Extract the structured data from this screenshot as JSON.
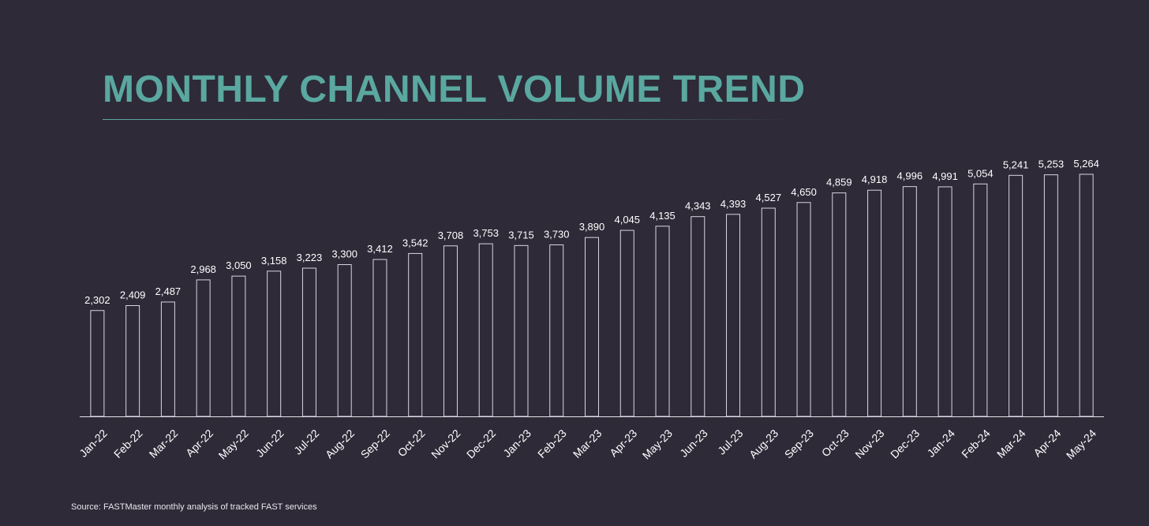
{
  "title": "MONTHLY CHANNEL VOLUME TREND",
  "source": "Source: FASTMaster monthly analysis of tracked FAST services",
  "colors": {
    "background": "#2e2a38",
    "title": "#5aa8a0",
    "bar_stroke": "#d9d6e2",
    "axis": "#e6e4ec",
    "text": "#ffffff"
  },
  "chart_data": {
    "type": "bar",
    "title": "MONTHLY CHANNEL VOLUME TREND",
    "xlabel": "",
    "ylabel": "",
    "ylim": [
      0,
      5500
    ],
    "grid": false,
    "legend": "none",
    "categories": [
      "Jan-22",
      "Feb-22",
      "Mar-22",
      "Apr-22",
      "May-22",
      "Jun-22",
      "Jul-22",
      "Aug-22",
      "Sep-22",
      "Oct-22",
      "Nov-22",
      "Dec-22",
      "Jan-23",
      "Feb-23",
      "Mar-23",
      "Apr-23",
      "May-23",
      "Jun-23",
      "Jul-23",
      "Aug-23",
      "Sep-23",
      "Oct-23",
      "Nov-23",
      "Dec-23",
      "Jan-24",
      "Feb-24",
      "Mar-24",
      "Apr-24",
      "May-24"
    ],
    "values": [
      2302,
      2409,
      2487,
      2968,
      3050,
      3158,
      3223,
      3300,
      3412,
      3542,
      3708,
      3753,
      3715,
      3730,
      3890,
      4045,
      4135,
      4343,
      4393,
      4527,
      4650,
      4859,
      4918,
      4996,
      4991,
      5054,
      5241,
      5253,
      5264
    ],
    "labels": [
      "2,302",
      "2,409",
      "2,487",
      "2,968",
      "3,050",
      "3,158",
      "3,223",
      "3,300",
      "3,412",
      "3,542",
      "3,708",
      "3,753",
      "3,715",
      "3,730",
      "3,890",
      "4,045",
      "4,135",
      "4,343",
      "4,393",
      "4,527",
      "4,650",
      "4,859",
      "4,918",
      "4,996",
      "4,991",
      "5,054",
      "5,241",
      "5,253",
      "5,264"
    ]
  }
}
